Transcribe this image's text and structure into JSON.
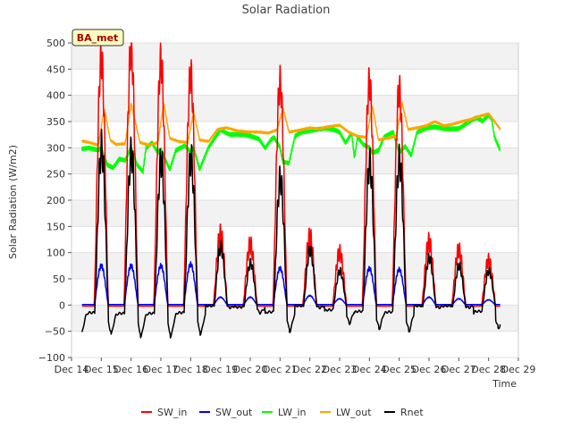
{
  "chart_data": {
    "type": "line",
    "title": "Solar Radiation",
    "xlabel": "Time",
    "ylabel": "Solar Radiation (W/m2)",
    "site_label": "BA_met",
    "xlim": [
      14,
      29
    ],
    "ylim": [
      -100,
      500
    ],
    "x_ticks": [
      14,
      15,
      16,
      17,
      18,
      19,
      20,
      21,
      22,
      23,
      24,
      25,
      26,
      27,
      28,
      29
    ],
    "x_tick_labels": [
      "Dec 14",
      "Dec 15",
      "Dec 16",
      "Dec 17",
      "Dec 18",
      "Dec 19",
      "Dec 20",
      "Dec 21",
      "Dec 22",
      "Dec 23",
      "Dec 24",
      "Dec 25",
      "Dec 26",
      "Dec 27",
      "Dec 28",
      "Dec 29"
    ],
    "y_ticks": [
      -100,
      -50,
      0,
      50,
      100,
      150,
      200,
      250,
      300,
      350,
      400,
      450,
      500
    ],
    "y_tick_labels": [
      "−100",
      "−50",
      "0",
      "50",
      "100",
      "150",
      "200",
      "250",
      "300",
      "350",
      "400",
      "450",
      "500"
    ],
    "legend_position": "bottom-center",
    "data_start_day": 14.35,
    "data_end_day": 28.4,
    "daily_peaks": {
      "days": [
        15,
        16,
        17,
        18,
        19,
        20,
        21,
        22,
        23,
        24,
        25,
        26,
        27,
        28
      ],
      "SW_in": [
        470,
        490,
        465,
        440,
        135,
        115,
        425,
        130,
        100,
        425,
        410,
        120,
        105,
        85
      ],
      "SW_out": [
        75,
        75,
        75,
        78,
        15,
        15,
        70,
        18,
        12,
        70,
        68,
        15,
        12,
        10
      ],
      "Rnet": [
        300,
        290,
        275,
        280,
        110,
        80,
        240,
        105,
        65,
        270,
        275,
        90,
        75,
        65
      ],
      "Rnet_night_min": [
        -55,
        -60,
        -60,
        -55,
        -5,
        -15,
        -50,
        -5,
        -35,
        -45,
        -50,
        -5,
        -5,
        -45
      ]
    },
    "series": [
      {
        "name": "SW_in",
        "color": "#ff0000"
      },
      {
        "name": "SW_out",
        "color": "#0000ff"
      },
      {
        "name": "LW_in",
        "color": "#00ff00"
      },
      {
        "name": "LW_out",
        "color": "#ffa500"
      },
      {
        "name": "Rnet",
        "color": "#000000"
      }
    ],
    "lw_in_profile": {
      "x": [
        14.35,
        14.6,
        14.9,
        15.0,
        15.2,
        15.4,
        15.6,
        15.8,
        16.0,
        16.2,
        16.4,
        16.5,
        16.7,
        16.9,
        17.0,
        17.2,
        17.3,
        17.5,
        17.8,
        18.0,
        18.1,
        18.3,
        18.6,
        18.8,
        19.0,
        19.3,
        19.6,
        20.0,
        20.3,
        20.5,
        20.7,
        20.8,
        21.0,
        21.1,
        21.3,
        21.5,
        21.7,
        22.0,
        22.3,
        22.6,
        22.9,
        23.0,
        23.2,
        23.4,
        23.5,
        23.6,
        23.8,
        24.0,
        24.1,
        24.3,
        24.5,
        24.8,
        25.0,
        25.2,
        25.4,
        25.6,
        25.9,
        26.2,
        26.5,
        26.8,
        27.0,
        27.2,
        27.4,
        27.6,
        27.8,
        28.0,
        28.1,
        28.2,
        28.4
      ],
      "y": [
        297,
        299,
        296,
        300,
        268,
        262,
        278,
        275,
        300,
        268,
        255,
        300,
        310,
        290,
        297,
        270,
        258,
        295,
        305,
        292,
        300,
        258,
        300,
        318,
        335,
        326,
        325,
        322,
        317,
        300,
        316,
        320,
        300,
        272,
        270,
        322,
        330,
        333,
        335,
        336,
        333,
        330,
        310,
        328,
        280,
        320,
        305,
        300,
        290,
        295,
        322,
        330,
        290,
        302,
        285,
        330,
        338,
        340,
        335,
        336,
        337,
        345,
        352,
        357,
        350,
        362,
        355,
        320,
        295
      ]
    },
    "lw_out_profile": {
      "x": [
        14.35,
        14.6,
        14.9,
        15.1,
        15.3,
        15.5,
        15.8,
        16.0,
        16.3,
        16.6,
        16.9,
        17.1,
        17.3,
        17.6,
        17.9,
        18.1,
        18.3,
        18.6,
        18.9,
        19.2,
        19.6,
        20.0,
        20.3,
        20.6,
        20.9,
        21.1,
        21.3,
        21.6,
        22.0,
        22.3,
        22.6,
        23.0,
        23.3,
        23.6,
        23.9,
        24.1,
        24.3,
        24.6,
        24.9,
        25.1,
        25.3,
        25.6,
        25.9,
        26.2,
        26.5,
        26.8,
        27.1,
        27.4,
        27.7,
        28.0,
        28.2,
        28.4
      ],
      "y": [
        313,
        310,
        305,
        375,
        315,
        306,
        308,
        385,
        310,
        305,
        310,
        385,
        318,
        312,
        310,
        368,
        315,
        312,
        335,
        338,
        332,
        330,
        330,
        328,
        334,
        375,
        330,
        333,
        338,
        336,
        340,
        343,
        330,
        322,
        320,
        380,
        315,
        318,
        322,
        385,
        335,
        338,
        342,
        350,
        342,
        345,
        350,
        354,
        360,
        365,
        350,
        335
      ]
    }
  },
  "legend": {
    "items": [
      {
        "label": "SW_in",
        "color": "#ff0000"
      },
      {
        "label": "SW_out",
        "color": "#0000ff"
      },
      {
        "label": "LW_in",
        "color": "#00ff00"
      },
      {
        "label": "LW_out",
        "color": "#ffa500"
      },
      {
        "label": "Rnet",
        "color": "#000000"
      }
    ]
  }
}
